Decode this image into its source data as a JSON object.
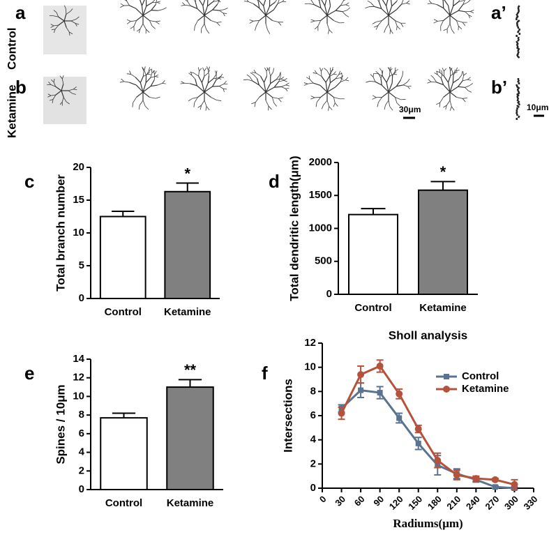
{
  "top_panel": {
    "labels": [
      "a",
      "b",
      "a’",
      "b’"
    ],
    "rows": [
      "Control",
      "Ketamine"
    ],
    "scale_bars": [
      "30μm",
      "10μm"
    ]
  },
  "chart_data": [
    {
      "type": "bar",
      "panel": "c",
      "categories": [
        "Control",
        "Ketamine"
      ],
      "values": [
        12.5,
        16.3
      ],
      "errors": [
        0.8,
        1.3
      ],
      "colors": [
        "#ffffff",
        "#808080"
      ],
      "ylim": [
        0,
        20
      ],
      "yticks": [
        0,
        5,
        10,
        15,
        20
      ],
      "ylabel": "Total branch number",
      "annotation": "*"
    },
    {
      "type": "bar",
      "panel": "d",
      "categories": [
        "Control",
        "Ketamine"
      ],
      "values": [
        1210,
        1580
      ],
      "errors": [
        90,
        130
      ],
      "colors": [
        "#ffffff",
        "#808080"
      ],
      "ylim": [
        0,
        2000
      ],
      "yticks": [
        0,
        500,
        1000,
        1500,
        2000
      ],
      "ylabel": "Total dendritic length(μm)",
      "annotation": "*"
    },
    {
      "type": "bar",
      "panel": "e",
      "categories": [
        "Control",
        "Ketamine"
      ],
      "values": [
        7.7,
        11.0
      ],
      "errors": [
        0.5,
        0.8
      ],
      "colors": [
        "#ffffff",
        "#808080"
      ],
      "ylim": [
        0,
        14
      ],
      "yticks": [
        0,
        2,
        4,
        6,
        8,
        10,
        12,
        14
      ],
      "ylabel": "Spines / 10μm",
      "annotation": "**"
    },
    {
      "type": "line",
      "panel": "f",
      "title": "Sholl analysis",
      "xlabel": "Radiums(μm)",
      "ylabel": "Intersections",
      "x": [
        30,
        60,
        90,
        120,
        150,
        180,
        210,
        240,
        270,
        300
      ],
      "xlim": [
        0,
        330
      ],
      "xticks": [
        0,
        30,
        60,
        90,
        120,
        150,
        180,
        210,
        240,
        270,
        300,
        330
      ],
      "ylim": [
        0,
        12
      ],
      "yticks": [
        0,
        2,
        4,
        6,
        8,
        10,
        12
      ],
      "legend": "upper right",
      "series": [
        {
          "name": "Control",
          "color": "#5a7390",
          "marker": "square",
          "values": [
            6.6,
            8.1,
            7.9,
            5.8,
            3.7,
            1.9,
            1.2,
            0.7,
            0.1,
            0.0
          ],
          "errors": [
            0.3,
            0.6,
            0.5,
            0.4,
            0.5,
            0.8,
            0.4,
            0.2,
            0.1,
            0.1
          ]
        },
        {
          "name": "Ketamine",
          "color": "#b5523b",
          "marker": "circle",
          "values": [
            6.2,
            9.4,
            10.1,
            7.8,
            4.9,
            2.3,
            1.1,
            0.8,
            0.7,
            0.3
          ],
          "errors": [
            0.5,
            0.7,
            0.5,
            0.4,
            0.3,
            0.6,
            0.4,
            0.2,
            0.1,
            0.4
          ]
        }
      ]
    }
  ]
}
